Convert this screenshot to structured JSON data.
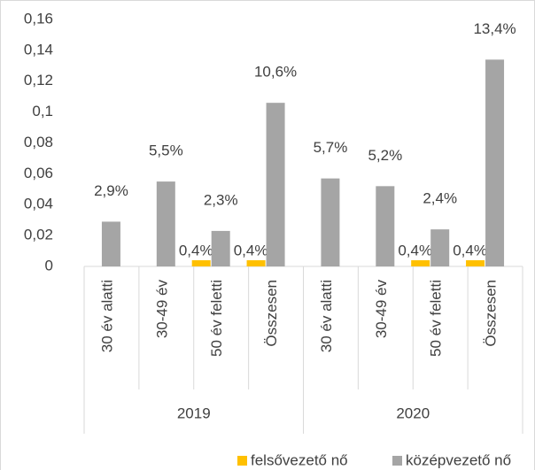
{
  "chart_data": {
    "type": "bar",
    "categories": [
      "30 év alatti",
      "30-49 év",
      "50 év feletti",
      "Összesen",
      "30 év alatti",
      "30-49 év",
      "50 év feletti",
      "Összesen"
    ],
    "groups": [
      "2019",
      "2020"
    ],
    "series": [
      {
        "name": "felsővezető nő",
        "color": "#ffc000",
        "values": [
          null,
          null,
          0.004,
          0.004,
          null,
          null,
          0.004,
          0.004
        ],
        "value_labels": [
          null,
          null,
          "0,4%",
          "0,4%",
          null,
          null,
          "0,4%",
          "0,4%"
        ]
      },
      {
        "name": "középvezető nő",
        "color": "#a5a5a5",
        "values": [
          0.029,
          0.055,
          0.023,
          0.106,
          0.057,
          0.052,
          0.024,
          0.134
        ],
        "value_labels": [
          "2,9%",
          "5,5%",
          "2,3%",
          "10,6%",
          "5,7%",
          "5,2%",
          "2,4%",
          "13,4%"
        ]
      }
    ],
    "ylim": [
      0,
      0.16
    ],
    "yticks": [
      0,
      {
        "value": 0.02,
        "label": "0,02"
      },
      {
        "value": 0.04,
        "label": "0,04"
      },
      {
        "value": 0.06,
        "label": "0,06"
      },
      {
        "value": 0.08,
        "label": "0,08"
      },
      {
        "value": 0.1,
        "label": "0,1"
      },
      {
        "value": 0.12,
        "label": "0,12"
      },
      {
        "value": 0.14,
        "label": "0,14"
      },
      {
        "value": 0.16,
        "label": "0,16"
      }
    ],
    "grid": false
  }
}
